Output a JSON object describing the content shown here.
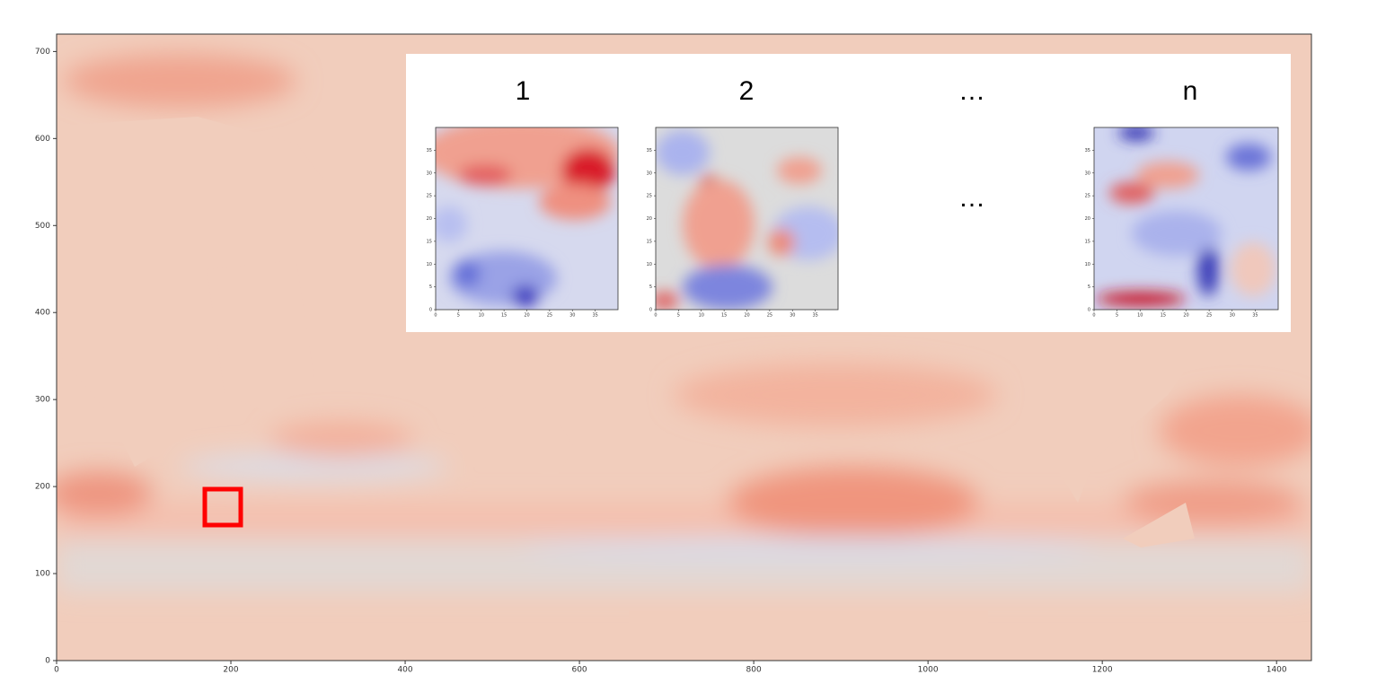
{
  "chart_data": {
    "type": "heatmap",
    "xlim": [
      0,
      1440
    ],
    "ylim": [
      0,
      720
    ],
    "xticks": [
      0,
      200,
      400,
      600,
      800,
      1000,
      1200,
      1400
    ],
    "yticks": [
      0,
      100,
      200,
      300,
      400,
      500,
      600,
      700
    ]
  },
  "inset": {
    "labels": [
      "1",
      "2",
      "…",
      "n"
    ],
    "ellipsis": "…",
    "lim": [
      0,
      40
    ],
    "ticks": [
      0,
      5,
      10,
      15,
      20,
      25,
      30,
      35
    ]
  }
}
